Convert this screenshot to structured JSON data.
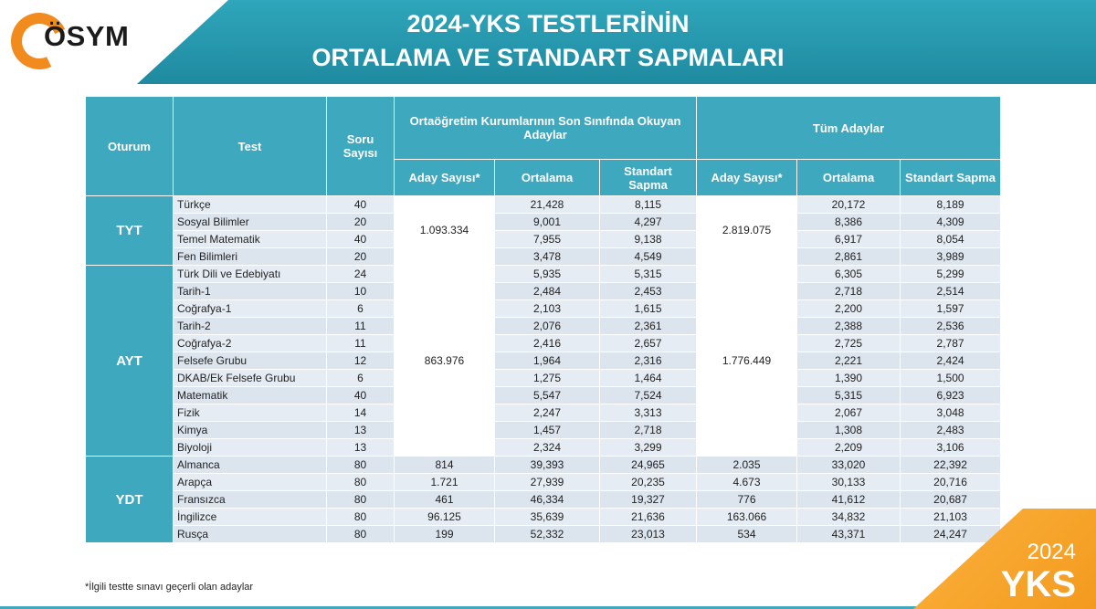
{
  "header": {
    "logo_text": "ÖSYM",
    "title_line1": "2024-YKS TESTLERİNİN",
    "title_line2": "ORTALAMA VE STANDART SAPMALARI"
  },
  "table": {
    "col_oturum": "Oturum",
    "col_test": "Test",
    "col_soru": "Soru Sayısı",
    "group1": "Ortaöğretim Kurumlarının Son Sınıfında Okuyan Adaylar",
    "group2": "Tüm Adaylar",
    "sub_aday": "Aday Sayısı*",
    "sub_ort": "Ortalama",
    "sub_std": "Standart Sapma",
    "sessions": {
      "tyt": {
        "label": "TYT",
        "aday1": "1.093.334",
        "aday2": "2.819.075"
      },
      "ayt": {
        "label": "AYT",
        "aday1": "863.976",
        "aday2": "1.776.449"
      },
      "ydt": {
        "label": "YDT"
      }
    },
    "rows": [
      {
        "test": "Türkçe",
        "soru": "40",
        "ort1": "21,428",
        "std1": "8,115",
        "ort2": "20,172",
        "std2": "8,189"
      },
      {
        "test": "Sosyal Bilimler",
        "soru": "20",
        "ort1": "9,001",
        "std1": "4,297",
        "ort2": "8,386",
        "std2": "4,309"
      },
      {
        "test": "Temel Matematik",
        "soru": "40",
        "ort1": "7,955",
        "std1": "9,138",
        "ort2": "6,917",
        "std2": "8,054"
      },
      {
        "test": "Fen Bilimleri",
        "soru": "20",
        "ort1": "3,478",
        "std1": "4,549",
        "ort2": "2,861",
        "std2": "3,989"
      },
      {
        "test": "Türk Dili ve Edebiyatı",
        "soru": "24",
        "ort1": "5,935",
        "std1": "5,315",
        "ort2": "6,305",
        "std2": "5,299"
      },
      {
        "test": "Tarih-1",
        "soru": "10",
        "ort1": "2,484",
        "std1": "2,453",
        "ort2": "2,718",
        "std2": "2,514"
      },
      {
        "test": "Coğrafya-1",
        "soru": "6",
        "ort1": "2,103",
        "std1": "1,615",
        "ort2": "2,200",
        "std2": "1,597"
      },
      {
        "test": "Tarih-2",
        "soru": "11",
        "ort1": "2,076",
        "std1": "2,361",
        "ort2": "2,388",
        "std2": "2,536"
      },
      {
        "test": "Coğrafya-2",
        "soru": "11",
        "ort1": "2,416",
        "std1": "2,657",
        "ort2": "2,725",
        "std2": "2,787"
      },
      {
        "test": "Felsefe Grubu",
        "soru": "12",
        "ort1": "1,964",
        "std1": "2,316",
        "ort2": "2,221",
        "std2": "2,424"
      },
      {
        "test": "DKAB/Ek Felsefe Grubu",
        "soru": "6",
        "ort1": "1,275",
        "std1": "1,464",
        "ort2": "1,390",
        "std2": "1,500"
      },
      {
        "test": "Matematik",
        "soru": "40",
        "ort1": "5,547",
        "std1": "7,524",
        "ort2": "5,315",
        "std2": "6,923"
      },
      {
        "test": "Fizik",
        "soru": "14",
        "ort1": "2,247",
        "std1": "3,313",
        "ort2": "2,067",
        "std2": "3,048"
      },
      {
        "test": "Kimya",
        "soru": "13",
        "ort1": "1,457",
        "std1": "2,718",
        "ort2": "1,308",
        "std2": "2,483"
      },
      {
        "test": "Biyoloji",
        "soru": "13",
        "ort1": "2,324",
        "std1": "3,299",
        "ort2": "2,209",
        "std2": "3,106"
      },
      {
        "test": "Almanca",
        "soru": "80",
        "aday1": "814",
        "ort1": "39,393",
        "std1": "24,965",
        "aday2": "2.035",
        "ort2": "33,020",
        "std2": "22,392"
      },
      {
        "test": "Arapça",
        "soru": "80",
        "aday1": "1.721",
        "ort1": "27,939",
        "std1": "20,235",
        "aday2": "4.673",
        "ort2": "30,133",
        "std2": "20,716"
      },
      {
        "test": "Fransızca",
        "soru": "80",
        "aday1": "461",
        "ort1": "46,334",
        "std1": "19,327",
        "aday2": "776",
        "ort2": "41,612",
        "std2": "20,687"
      },
      {
        "test": "İngilizce",
        "soru": "80",
        "aday1": "96.125",
        "ort1": "35,639",
        "std1": "21,636",
        "aday2": "163.066",
        "ort2": "34,832",
        "std2": "21,103"
      },
      {
        "test": "Rusça",
        "soru": "80",
        "aday1": "199",
        "ort1": "52,332",
        "std1": "23,013",
        "aday2": "534",
        "ort2": "43,371",
        "std2": "24,247"
      }
    ]
  },
  "footnote": "*İlgili testte sınavı geçerli olan adaylar",
  "badge": {
    "year": "2024",
    "name": "YKS"
  },
  "colors": {
    "teal": "#3ea8bf",
    "orange": "#f39a1f",
    "row": "#e6ecf3"
  }
}
